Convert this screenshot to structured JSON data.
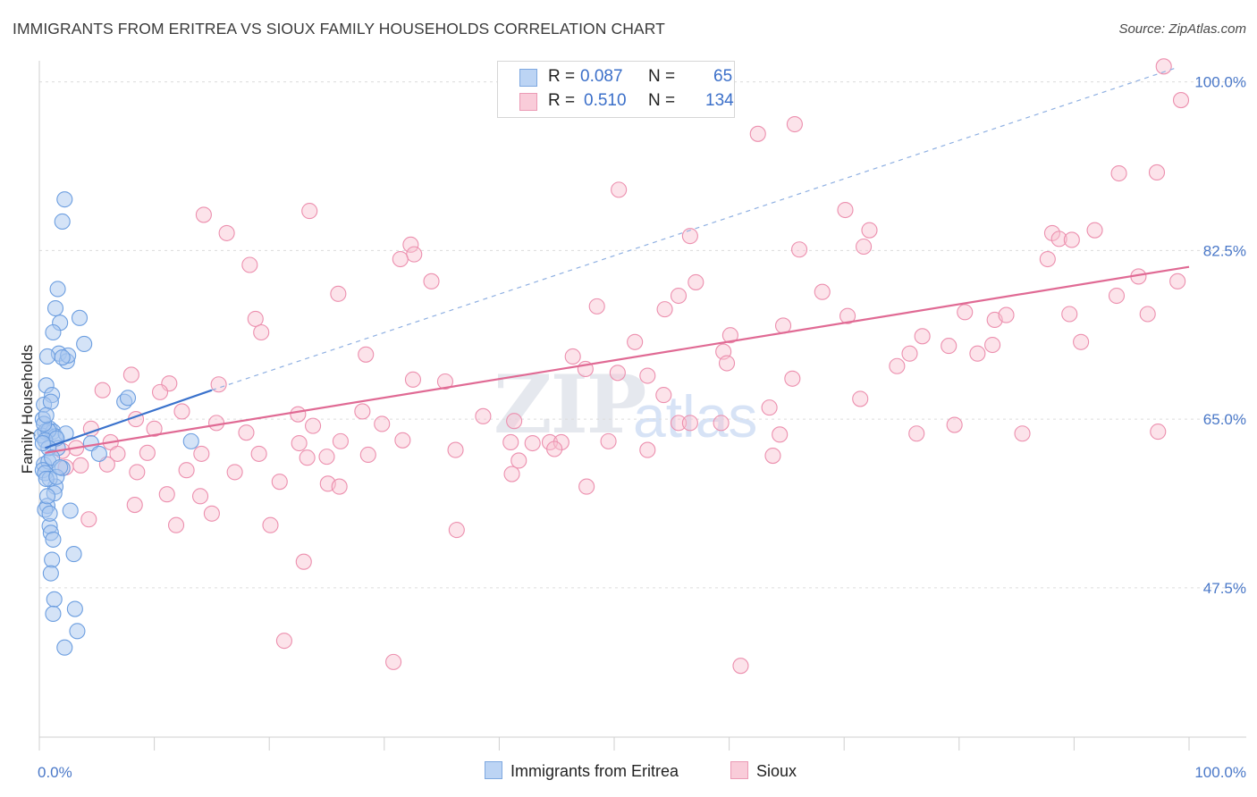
{
  "header": {
    "title": "IMMIGRANTS FROM ERITREA VS SIOUX FAMILY HOUSEHOLDS CORRELATION CHART",
    "source": "Source: ZipAtlas.com"
  },
  "watermark": {
    "zip": "ZIP",
    "atlas": "atlas"
  },
  "legend": {
    "series": [
      {
        "name": "Immigrants from Eritrea",
        "r_label": "R =",
        "r": "0.087",
        "n_label": "N =",
        "n": "65"
      },
      {
        "name": "Sioux",
        "r_label": "R =",
        "r": "0.510",
        "n_label": "N =",
        "n": "134"
      }
    ]
  },
  "colors": {
    "eritrea_fill": "#aac8f0",
    "eritrea_stroke": "#6c9ee0",
    "eritrea_line": "#3a72cc",
    "sioux_fill": "#f8c0d0",
    "sioux_stroke": "#ec8fae",
    "sioux_line": "#e06a94",
    "grid": "#dcdcdc",
    "tick_label": "#4a78c8"
  },
  "chart_data": {
    "type": "scatter",
    "title": "IMMIGRANTS FROM ERITREA VS SIOUX FAMILY HOUSEHOLDS CORRELATION CHART",
    "xlabel": "",
    "ylabel": "Family Households",
    "xlim": [
      0,
      100
    ],
    "ylim": [
      32,
      102
    ],
    "x_tick_labels": [
      "0.0%",
      "100.0%"
    ],
    "y_ticks": [
      47.5,
      65.0,
      82.5,
      100.0
    ],
    "y_tick_labels": [
      "47.5%",
      "65.0%",
      "82.5%",
      "100.0%"
    ],
    "grid": true,
    "series": [
      {
        "name": "Immigrants from Eritrea",
        "R": 0.087,
        "N": 65,
        "trend_solid": [
          [
            0.5,
            62.0
          ],
          [
            15.0,
            68.0
          ]
        ],
        "trend_dashed": [
          [
            15.0,
            68.0
          ],
          [
            99.0,
            101.5
          ]
        ],
        "points": [
          [
            2.2,
            87.8
          ],
          [
            2.0,
            85.5
          ],
          [
            1.6,
            78.5
          ],
          [
            1.4,
            76.5
          ],
          [
            3.5,
            75.5
          ],
          [
            1.8,
            75.0
          ],
          [
            1.2,
            74.0
          ],
          [
            3.9,
            72.8
          ],
          [
            1.7,
            71.8
          ],
          [
            2.4,
            71.0
          ],
          [
            0.7,
            71.5
          ],
          [
            2.5,
            71.6
          ],
          [
            2.0,
            71.4
          ],
          [
            0.6,
            68.5
          ],
          [
            1.1,
            67.5
          ],
          [
            0.4,
            66.5
          ],
          [
            1.0,
            66.8
          ],
          [
            7.4,
            66.8
          ],
          [
            7.7,
            67.2
          ],
          [
            0.3,
            65.0
          ],
          [
            0.9,
            64.0
          ],
          [
            0.5,
            63.7
          ],
          [
            0.2,
            63.3
          ],
          [
            1.2,
            63.7
          ],
          [
            1.4,
            63.2
          ],
          [
            2.3,
            63.5
          ],
          [
            0.8,
            63.8
          ],
          [
            4.5,
            62.5
          ],
          [
            13.2,
            62.7
          ],
          [
            1.6,
            62.0
          ],
          [
            0.5,
            62.8
          ],
          [
            5.2,
            61.4
          ],
          [
            0.4,
            60.3
          ],
          [
            0.8,
            60.6
          ],
          [
            0.3,
            59.7
          ],
          [
            0.5,
            59.4
          ],
          [
            1.4,
            58.0
          ],
          [
            0.9,
            58.8
          ],
          [
            1.3,
            57.3
          ],
          [
            0.7,
            56.0
          ],
          [
            2.7,
            55.5
          ],
          [
            0.5,
            55.6
          ],
          [
            0.9,
            53.9
          ],
          [
            1.0,
            53.2
          ],
          [
            1.2,
            52.5
          ],
          [
            3.0,
            51.0
          ],
          [
            1.1,
            50.4
          ],
          [
            1.0,
            49.0
          ],
          [
            1.3,
            46.3
          ],
          [
            3.1,
            45.3
          ],
          [
            1.2,
            44.8
          ],
          [
            3.3,
            43.0
          ],
          [
            2.2,
            41.3
          ],
          [
            0.6,
            58.8
          ],
          [
            0.4,
            64.5
          ],
          [
            0.6,
            65.4
          ],
          [
            1.5,
            63.0
          ],
          [
            0.8,
            62.0
          ],
          [
            2.0,
            59.9
          ],
          [
            0.3,
            62.5
          ],
          [
            1.1,
            61.0
          ],
          [
            0.9,
            55.2
          ],
          [
            1.5,
            59.0
          ],
          [
            0.7,
            57.0
          ],
          [
            1.8,
            60.0
          ]
        ]
      },
      {
        "name": "Sioux",
        "R": 0.51,
        "N": 134,
        "trend_solid": [
          [
            0.5,
            61.5
          ],
          [
            100.0,
            80.8
          ]
        ],
        "points": [
          [
            97.8,
            101.6
          ],
          [
            99.3,
            98.1
          ],
          [
            65.7,
            95.6
          ],
          [
            62.5,
            94.6
          ],
          [
            93.9,
            90.5
          ],
          [
            97.2,
            90.6
          ],
          [
            50.4,
            88.8
          ],
          [
            14.3,
            86.2
          ],
          [
            23.5,
            86.6
          ],
          [
            70.1,
            86.7
          ],
          [
            16.3,
            84.3
          ],
          [
            72.2,
            84.6
          ],
          [
            56.6,
            84.0
          ],
          [
            91.8,
            84.6
          ],
          [
            88.1,
            84.3
          ],
          [
            88.7,
            83.7
          ],
          [
            89.8,
            83.6
          ],
          [
            71.7,
            82.9
          ],
          [
            32.3,
            83.1
          ],
          [
            66.1,
            82.6
          ],
          [
            32.6,
            82.1
          ],
          [
            31.4,
            81.6
          ],
          [
            87.7,
            81.6
          ],
          [
            18.3,
            81.0
          ],
          [
            34.1,
            79.3
          ],
          [
            57.1,
            79.2
          ],
          [
            95.6,
            79.8
          ],
          [
            26.0,
            78.0
          ],
          [
            55.6,
            77.8
          ],
          [
            68.1,
            78.2
          ],
          [
            99.0,
            79.3
          ],
          [
            93.7,
            77.8
          ],
          [
            48.5,
            76.7
          ],
          [
            54.4,
            76.4
          ],
          [
            18.8,
            75.4
          ],
          [
            70.3,
            75.7
          ],
          [
            80.5,
            76.1
          ],
          [
            83.1,
            75.3
          ],
          [
            84.1,
            75.8
          ],
          [
            89.6,
            75.9
          ],
          [
            96.4,
            75.9
          ],
          [
            19.3,
            74.0
          ],
          [
            64.7,
            74.7
          ],
          [
            60.1,
            73.7
          ],
          [
            51.8,
            73.0
          ],
          [
            76.8,
            73.6
          ],
          [
            79.1,
            72.6
          ],
          [
            82.9,
            72.7
          ],
          [
            59.5,
            72.0
          ],
          [
            90.6,
            73.0
          ],
          [
            28.4,
            71.7
          ],
          [
            46.4,
            71.5
          ],
          [
            75.7,
            71.8
          ],
          [
            81.6,
            71.8
          ],
          [
            47.5,
            70.2
          ],
          [
            59.8,
            70.8
          ],
          [
            74.6,
            70.5
          ],
          [
            8.0,
            69.6
          ],
          [
            32.5,
            69.1
          ],
          [
            50.3,
            69.8
          ],
          [
            52.9,
            69.5
          ],
          [
            65.5,
            69.2
          ],
          [
            35.3,
            68.9
          ],
          [
            11.3,
            68.7
          ],
          [
            15.6,
            68.6
          ],
          [
            5.5,
            68.0
          ],
          [
            10.5,
            67.8
          ],
          [
            54.3,
            67.5
          ],
          [
            71.4,
            67.1
          ],
          [
            63.5,
            66.2
          ],
          [
            12.4,
            65.8
          ],
          [
            28.1,
            65.8
          ],
          [
            8.4,
            65.0
          ],
          [
            22.5,
            65.5
          ],
          [
            38.6,
            65.3
          ],
          [
            41.3,
            64.8
          ],
          [
            10.0,
            64.0
          ],
          [
            15.4,
            64.6
          ],
          [
            23.8,
            64.3
          ],
          [
            29.8,
            64.5
          ],
          [
            55.6,
            64.6
          ],
          [
            56.6,
            64.6
          ],
          [
            59.3,
            64.6
          ],
          [
            79.6,
            64.4
          ],
          [
            18.0,
            63.6
          ],
          [
            22.6,
            62.5
          ],
          [
            6.2,
            62.6
          ],
          [
            26.2,
            62.7
          ],
          [
            31.6,
            62.8
          ],
          [
            41.0,
            62.6
          ],
          [
            42.9,
            62.5
          ],
          [
            44.4,
            62.6
          ],
          [
            45.4,
            62.6
          ],
          [
            49.5,
            62.7
          ],
          [
            64.4,
            63.4
          ],
          [
            76.3,
            63.5
          ],
          [
            85.5,
            63.5
          ],
          [
            97.3,
            63.7
          ],
          [
            4.5,
            64.0
          ],
          [
            3.2,
            62.0
          ],
          [
            2.0,
            61.7
          ],
          [
            6.8,
            61.4
          ],
          [
            9.4,
            61.5
          ],
          [
            14.1,
            61.4
          ],
          [
            19.1,
            61.4
          ],
          [
            23.3,
            61.0
          ],
          [
            25.0,
            61.1
          ],
          [
            28.6,
            61.3
          ],
          [
            41.7,
            60.7
          ],
          [
            44.8,
            61.9
          ],
          [
            36.2,
            61.8
          ],
          [
            52.9,
            61.8
          ],
          [
            2.3,
            60.0
          ],
          [
            3.6,
            60.2
          ],
          [
            5.9,
            60.3
          ],
          [
            8.5,
            59.5
          ],
          [
            12.8,
            59.7
          ],
          [
            17.0,
            59.5
          ],
          [
            20.9,
            58.5
          ],
          [
            25.1,
            58.3
          ],
          [
            63.8,
            61.2
          ],
          [
            11.1,
            57.2
          ],
          [
            14.0,
            57.0
          ],
          [
            26.1,
            58.0
          ],
          [
            41.1,
            59.3
          ],
          [
            47.6,
            58.0
          ],
          [
            4.3,
            54.6
          ],
          [
            11.9,
            54.0
          ],
          [
            20.1,
            54.0
          ],
          [
            8.3,
            56.1
          ],
          [
            15.0,
            55.2
          ],
          [
            23.0,
            50.2
          ],
          [
            36.3,
            53.5
          ],
          [
            21.3,
            42.0
          ],
          [
            30.8,
            39.8
          ],
          [
            61.0,
            39.4
          ]
        ]
      }
    ]
  }
}
